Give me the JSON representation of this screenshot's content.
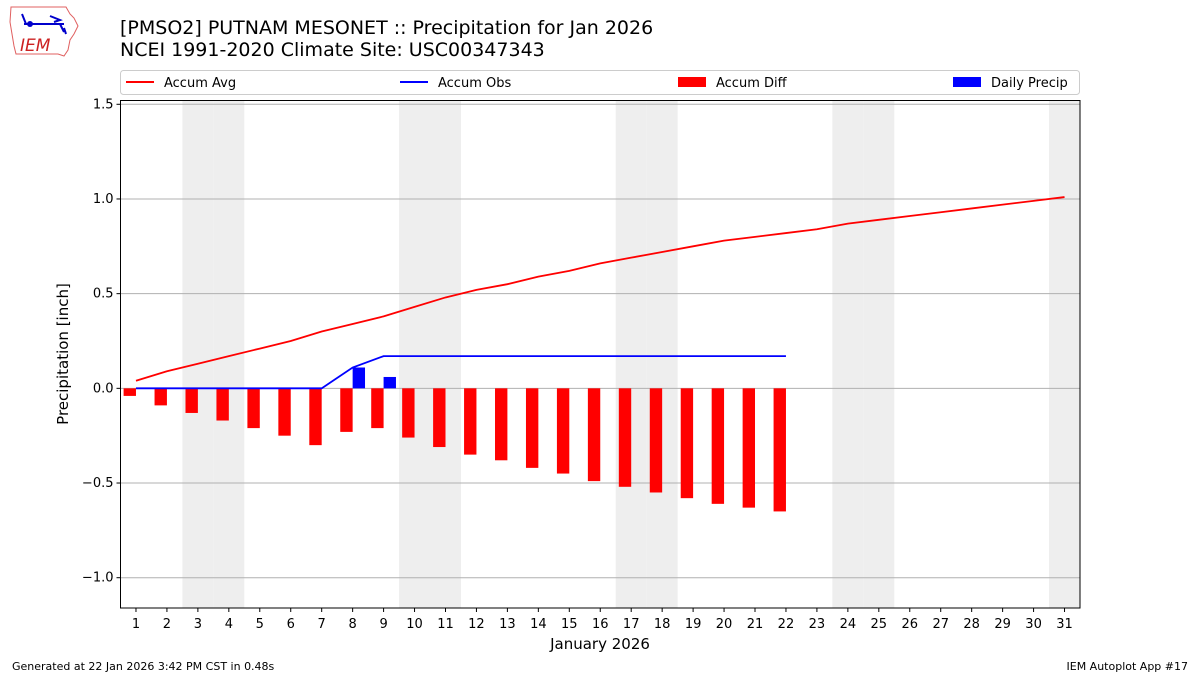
{
  "title_line1": "[PMSO2] PUTNAM MESONET :: Precipitation for Jan 2026",
  "title_line2": "NCEI 1991-2020 Climate Site: USC00347343",
  "footer_left": "Generated at 22 Jan 2026 3:42 PM CST in 0.48s",
  "footer_right": "IEM Autoplot App #17",
  "logo_text": "IEM",
  "chart_data": {
    "type": "bar",
    "xlabel": "January 2026",
    "ylabel": "Precipitation [inch]",
    "xlim": [
      0.5,
      31.5
    ],
    "ylim": [
      -1.16,
      1.52
    ],
    "yticks": [
      -1.0,
      -0.5,
      0.0,
      0.5,
      1.0,
      1.5
    ],
    "ytick_labels": [
      "−1.0",
      "−0.5",
      "0.0",
      "0.5",
      "1.0",
      "1.5"
    ],
    "x": [
      1,
      2,
      3,
      4,
      5,
      6,
      7,
      8,
      9,
      10,
      11,
      12,
      13,
      14,
      15,
      16,
      17,
      18,
      19,
      20,
      21,
      22,
      23,
      24,
      25,
      26,
      27,
      28,
      29,
      30,
      31
    ],
    "grid": "horizontal",
    "legend_placement": "top",
    "weekend_shading_days": [
      3,
      4,
      10,
      11,
      17,
      18,
      24,
      25,
      31
    ],
    "weekend_color": "#eeeeee",
    "series": [
      {
        "name": "Accum Avg",
        "kind": "line",
        "color": "#ff0000",
        "x": [
          1,
          2,
          3,
          4,
          5,
          6,
          7,
          8,
          9,
          10,
          11,
          12,
          13,
          14,
          15,
          16,
          17,
          18,
          19,
          20,
          21,
          22,
          23,
          24,
          25,
          26,
          27,
          28,
          29,
          30,
          31
        ],
        "values": [
          0.04,
          0.09,
          0.13,
          0.17,
          0.21,
          0.25,
          0.3,
          0.34,
          0.38,
          0.43,
          0.48,
          0.52,
          0.55,
          0.59,
          0.62,
          0.66,
          0.69,
          0.72,
          0.75,
          0.78,
          0.8,
          0.82,
          0.84,
          0.87,
          0.89,
          0.91,
          0.93,
          0.95,
          0.97,
          0.99,
          1.01
        ]
      },
      {
        "name": "Accum Obs",
        "kind": "line",
        "color": "#0000ff",
        "x": [
          1,
          2,
          3,
          4,
          5,
          6,
          7,
          8,
          9,
          10,
          11,
          12,
          13,
          14,
          15,
          16,
          17,
          18,
          19,
          20,
          21,
          22
        ],
        "values": [
          0,
          0,
          0,
          0,
          0,
          0,
          0,
          0.11,
          0.17,
          0.17,
          0.17,
          0.17,
          0.17,
          0.17,
          0.17,
          0.17,
          0.17,
          0.17,
          0.17,
          0.17,
          0.17,
          0.17
        ]
      },
      {
        "name": "Accum Diff",
        "kind": "bar",
        "color": "#ff0000",
        "x": [
          1,
          2,
          3,
          4,
          5,
          6,
          7,
          8,
          9,
          10,
          11,
          12,
          13,
          14,
          15,
          16,
          17,
          18,
          19,
          20,
          21,
          22
        ],
        "values": [
          -0.04,
          -0.09,
          -0.13,
          -0.17,
          -0.21,
          -0.25,
          -0.3,
          -0.23,
          -0.21,
          -0.26,
          -0.31,
          -0.35,
          -0.38,
          -0.42,
          -0.45,
          -0.49,
          -0.52,
          -0.55,
          -0.58,
          -0.61,
          -0.63,
          -0.65
        ]
      },
      {
        "name": "Daily Precip",
        "kind": "bar",
        "color": "#0000ff",
        "x": [
          8,
          9
        ],
        "values": [
          0.11,
          0.06
        ]
      }
    ]
  }
}
